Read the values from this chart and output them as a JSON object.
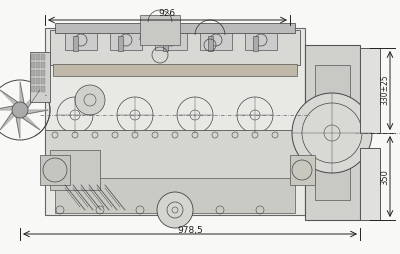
{
  "bg_color": "#f0f0f0",
  "line_color": "#444444",
  "dim_color": "#222222",
  "engine_color": "#888888",
  "title": "",
  "dim_926": "926",
  "dim_9785": "978,5",
  "dim_330": "330±25",
  "dim_350": "350",
  "fig_width": 4.0,
  "fig_height": 2.54,
  "dpi": 100
}
